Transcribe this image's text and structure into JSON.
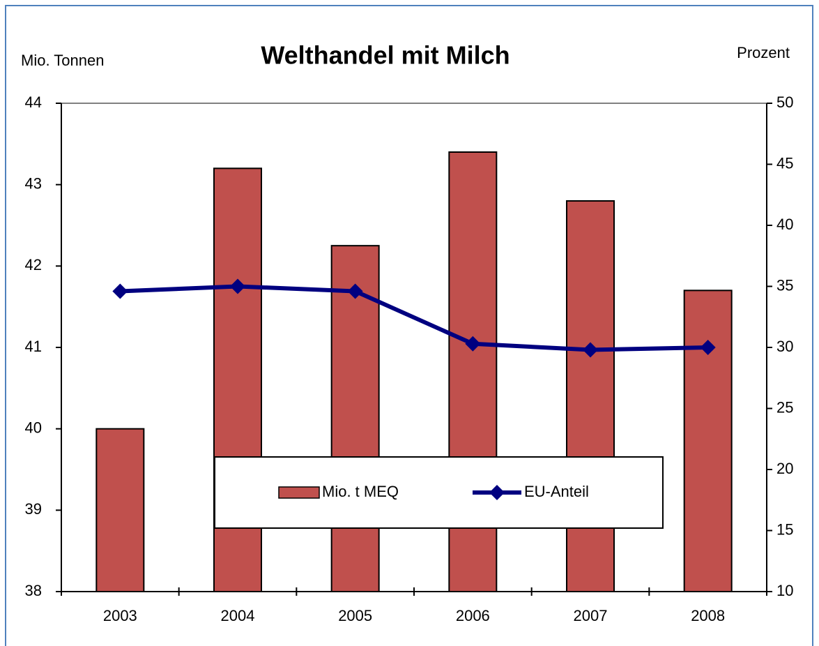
{
  "chart_data": {
    "type": "bar",
    "title": "Welthandel mit Milch",
    "y_label": "Mio. Tonnen",
    "y2_label": "Prozent",
    "categories": [
      "2003",
      "2004",
      "2005",
      "2006",
      "2007",
      "2008"
    ],
    "series": [
      {
        "name": "Mio. t MEQ",
        "type": "bar",
        "color": "#c0504d",
        "values": [
          40.0,
          43.2,
          42.25,
          43.4,
          42.8,
          41.7
        ]
      },
      {
        "name": "EU-Anteil",
        "type": "line",
        "axis": "y2",
        "color": "#000080",
        "values": [
          34.6,
          35.0,
          34.6,
          30.3,
          29.8,
          30.0
        ]
      }
    ],
    "ylim": [
      38,
      44
    ],
    "yticks": [
      38,
      39,
      40,
      41,
      42,
      43,
      44
    ],
    "y2lim": [
      10,
      50
    ],
    "y2ticks": [
      10,
      15,
      20,
      25,
      30,
      35,
      40,
      45,
      50
    ],
    "legend": "lower center"
  }
}
